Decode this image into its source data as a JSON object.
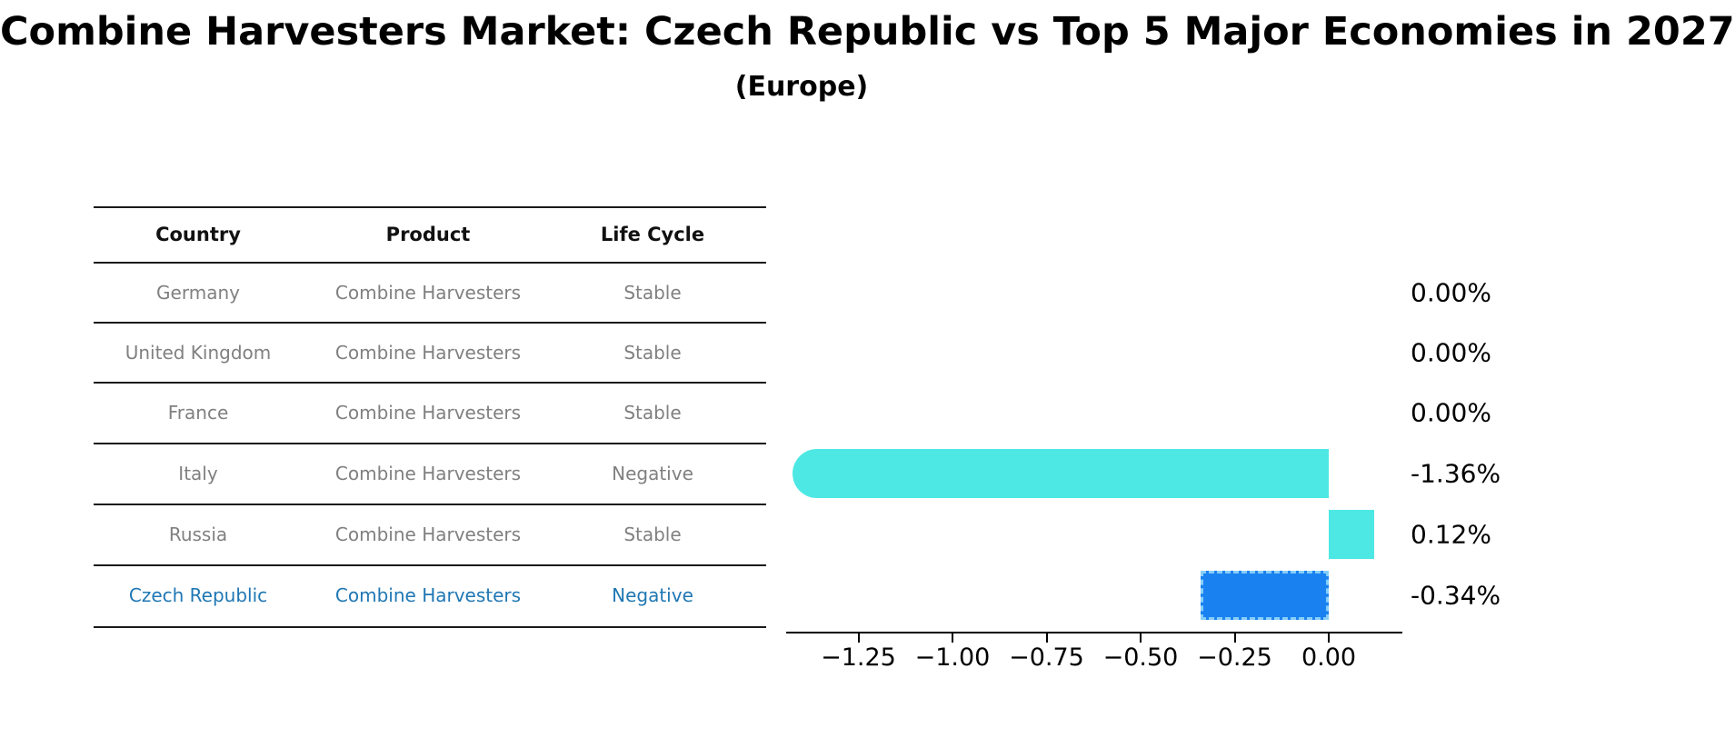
{
  "title": "Combine Harvesters Market: Czech Republic vs Top 5 Major Economies in 2027",
  "subtitle": "(Europe)",
  "table": {
    "headers": {
      "country": "Country",
      "product": "Product",
      "life_cycle": "Life Cycle"
    },
    "rows": [
      {
        "country": "Germany",
        "product": "Combine Harvesters",
        "life_cycle": "Stable",
        "highlighted": false
      },
      {
        "country": "United Kingdom",
        "product": "Combine Harvesters",
        "life_cycle": "Stable",
        "highlighted": false
      },
      {
        "country": "France",
        "product": "Combine Harvesters",
        "life_cycle": "Stable",
        "highlighted": false
      },
      {
        "country": "Italy",
        "product": "Combine Harvesters",
        "life_cycle": "Negative",
        "highlighted": false
      },
      {
        "country": "Russia",
        "product": "Combine Harvesters",
        "life_cycle": "Stable",
        "highlighted": false
      },
      {
        "country": "Czech Republic",
        "product": "Combine Harvesters",
        "life_cycle": "Negative",
        "highlighted": true
      }
    ],
    "highlight_color": "#1f77b4",
    "text_color": "#808080"
  },
  "chart_data": {
    "type": "bar",
    "orientation": "horizontal",
    "categories": [
      "Germany",
      "United Kingdom",
      "France",
      "Italy",
      "Russia",
      "Czech Republic"
    ],
    "values": [
      0.0,
      0.0,
      0.0,
      -1.36,
      0.12,
      -0.34
    ],
    "value_labels": [
      "0.00%",
      "0.00%",
      "0.00%",
      "-1.36%",
      "0.12%",
      "-0.34%"
    ],
    "x_ticks": [
      -1.25,
      -1.0,
      -0.75,
      -0.5,
      -0.25,
      0.0
    ],
    "x_tick_labels": [
      "−1.25",
      "−1.00",
      "−0.75",
      "−0.50",
      "−0.25",
      "0.00"
    ],
    "xlim": [
      -1.44,
      0.2
    ],
    "grid": false,
    "legend": false,
    "bar_styles": [
      {
        "index": 3,
        "fill": "#4de8e4",
        "rounded_left": true,
        "border": "none"
      },
      {
        "index": 4,
        "fill": "#4de8e4",
        "rounded_left": false,
        "border": "none"
      },
      {
        "index": 5,
        "fill": "#1a82f0",
        "rounded_left": false,
        "border": "dashed",
        "border_color": "#87cefa"
      }
    ],
    "colors": {
      "default_bar": "#4de8e4",
      "highlight_bar": "#1a82f0",
      "highlight_border": "#87cefa"
    }
  }
}
